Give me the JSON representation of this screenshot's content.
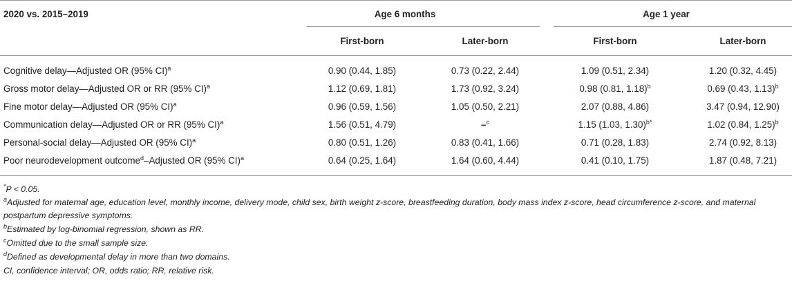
{
  "header": {
    "comparison": "2020 vs. 2015–2019",
    "group1": "Age 6 months",
    "group2": "Age 1 year",
    "sub": [
      "First-born",
      "Later-born",
      "First-born",
      "Later-born"
    ]
  },
  "rows": [
    {
      "label": "Cognitive delay—Adjusted OR (95% CI)",
      "label_sup": "a",
      "label_mid_sup": "",
      "label_rest": "",
      "cells": [
        {
          "v": "0.90 (0.44, 1.85)",
          "s": ""
        },
        {
          "v": "0.73 (0.22, 2.44)",
          "s": ""
        },
        {
          "v": "1.09 (0.51, 2.34)",
          "s": ""
        },
        {
          "v": "1.20 (0.32, 4.45)",
          "s": ""
        }
      ]
    },
    {
      "label": "Gross motor delay—Adjusted OR or RR (95% CI)",
      "label_sup": "a",
      "label_mid_sup": "",
      "label_rest": "",
      "cells": [
        {
          "v": "1.12 (0.69, 1.81)",
          "s": ""
        },
        {
          "v": "1.73 (0.92, 3.24)",
          "s": ""
        },
        {
          "v": "0.98 (0.81, 1.18)",
          "s": "b"
        },
        {
          "v": "0.69 (0.43, 1.13)",
          "s": "b"
        }
      ]
    },
    {
      "label": "Fine motor delay—Adjusted OR (95% CI)",
      "label_sup": "a",
      "label_mid_sup": "",
      "label_rest": "",
      "cells": [
        {
          "v": "0.96 (0.59, 1.56)",
          "s": ""
        },
        {
          "v": "1.05 (0.50, 2.21)",
          "s": ""
        },
        {
          "v": "2.07 (0.88, 4.86)",
          "s": ""
        },
        {
          "v": "3.47 (0.94, 12.90)",
          "s": ""
        }
      ]
    },
    {
      "label": "Communication delay—Adjusted OR or RR (95% CI)",
      "label_sup": "a",
      "label_mid_sup": "",
      "label_rest": "",
      "cells": [
        {
          "v": "1.56 (0.51, 4.79)",
          "s": ""
        },
        {
          "v": "–",
          "s": "c"
        },
        {
          "v": "1.15 (1.03, 1.30)",
          "s": "b*"
        },
        {
          "v": "1.02 (0.84, 1.25)",
          "s": "b"
        }
      ]
    },
    {
      "label": "Personal-social delay—Adjusted OR (95% CI)",
      "label_sup": "a",
      "label_mid_sup": "",
      "label_rest": "",
      "cells": [
        {
          "v": "0.80 (0.51, 1.26)",
          "s": ""
        },
        {
          "v": "0.83 (0.41, 1.66)",
          "s": ""
        },
        {
          "v": "0.71 (0.28, 1.83)",
          "s": ""
        },
        {
          "v": "2.74 (0.92, 8.13)",
          "s": ""
        }
      ]
    },
    {
      "label": "Poor neurodevelopment outcome",
      "label_mid_sup": "d",
      "label_rest": "–Adjusted OR (95% CI)",
      "label_sup": "a",
      "cells": [
        {
          "v": "0.64 (0.25, 1.64)",
          "s": ""
        },
        {
          "v": "1.64 (0.60, 4.44)",
          "s": ""
        },
        {
          "v": "0.41 (0.10, 1.75)",
          "s": ""
        },
        {
          "v": "1.87 (0.48, 7.21)",
          "s": ""
        }
      ]
    }
  ],
  "notes": {
    "n0_sup": "*",
    "n0": "P < 0.05.",
    "n1_sup": "a",
    "n1": "Adjusted for maternal age, education level, monthly income, delivery mode, child sex, birth weight z-score, breastfeeding duration, body mass index z-score, head circumference z-score, and maternal postpartum depressive symptoms.",
    "n2_sup": "b",
    "n2": "Estimated by log-binomial regression, shown as RR.",
    "n3_sup": "c",
    "n3": "Omitted due to the small sample size.",
    "n4_sup": "d",
    "n4": "Defined as developmental delay in more than two domains.",
    "n5": "CI, confidence interval; OR, odds ratio; RR, relative risk."
  }
}
